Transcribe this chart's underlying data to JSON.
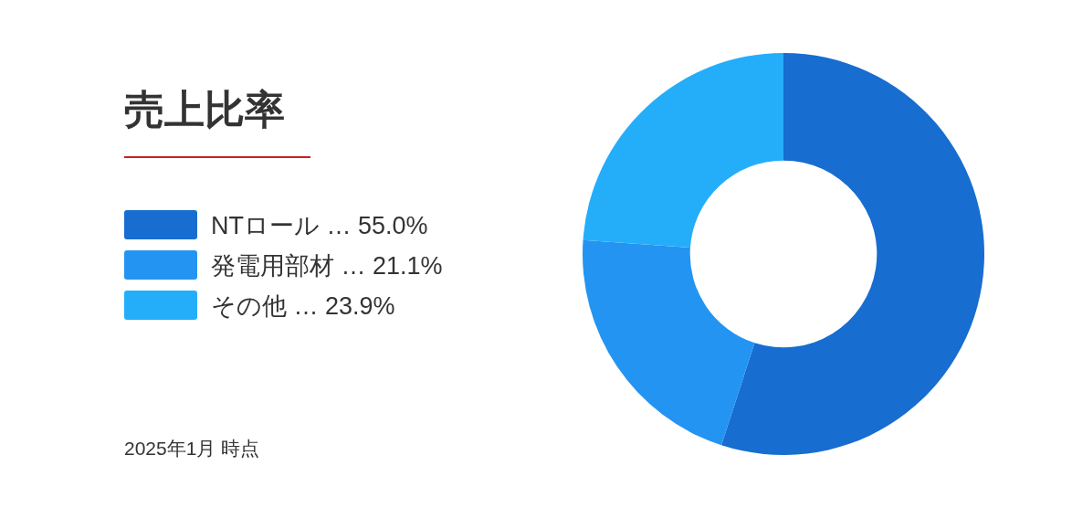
{
  "chart_data": {
    "type": "donut",
    "title": "売上比率",
    "categories": [
      "NTロール",
      "発電用部材",
      "その他"
    ],
    "values": [
      55.0,
      21.1,
      23.9
    ],
    "value_labels": [
      "… 55.0%",
      "… 21.1%",
      "… 23.9%"
    ],
    "colors": [
      "#176dd0",
      "#2494f2",
      "#24aefa"
    ],
    "legend": "left",
    "annotations": [
      "2025年1月 時点"
    ]
  }
}
